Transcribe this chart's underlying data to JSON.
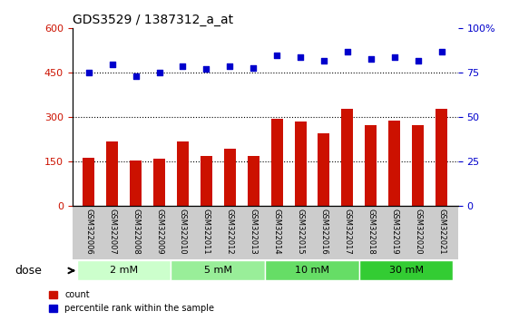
{
  "title": "GDS3529 / 1387312_a_at",
  "samples": [
    "GSM322006",
    "GSM322007",
    "GSM322008",
    "GSM322009",
    "GSM322010",
    "GSM322011",
    "GSM322012",
    "GSM322013",
    "GSM322014",
    "GSM322015",
    "GSM322016",
    "GSM322017",
    "GSM322018",
    "GSM322019",
    "GSM322020",
    "GSM322021"
  ],
  "bar_values": [
    163,
    220,
    155,
    160,
    220,
    170,
    195,
    170,
    295,
    285,
    245,
    330,
    275,
    290,
    275,
    330
  ],
  "dot_values_pct": [
    75,
    80,
    73,
    75,
    79,
    77,
    79,
    78,
    85,
    84,
    82,
    87,
    83,
    84,
    82,
    87
  ],
  "dose_groups": [
    {
      "label": "2 mM",
      "start": 0,
      "end": 4,
      "color": "#ccffcc"
    },
    {
      "label": "5 mM",
      "start": 4,
      "end": 8,
      "color": "#99ee99"
    },
    {
      "label": "10 mM",
      "start": 8,
      "end": 12,
      "color": "#66dd66"
    },
    {
      "label": "30 mM",
      "start": 12,
      "end": 16,
      "color": "#33cc33"
    }
  ],
  "bar_color": "#cc1100",
  "dot_color": "#0000cc",
  "left_ylim": [
    0,
    600
  ],
  "right_ylim": [
    0,
    100
  ],
  "left_yticks": [
    0,
    150,
    300,
    450,
    600
  ],
  "right_yticks": [
    0,
    25,
    50,
    75,
    100
  ],
  "right_yticklabels": [
    "0",
    "25",
    "50",
    "75",
    "100%"
  ],
  "hlines": [
    150,
    300,
    450
  ],
  "bg_color": "#ffffff",
  "plot_bg": "#ffffff",
  "tick_area_bg": "#cccccc",
  "dose_label": "dose",
  "legend_count_label": "count",
  "legend_pct_label": "percentile rank within the sample"
}
